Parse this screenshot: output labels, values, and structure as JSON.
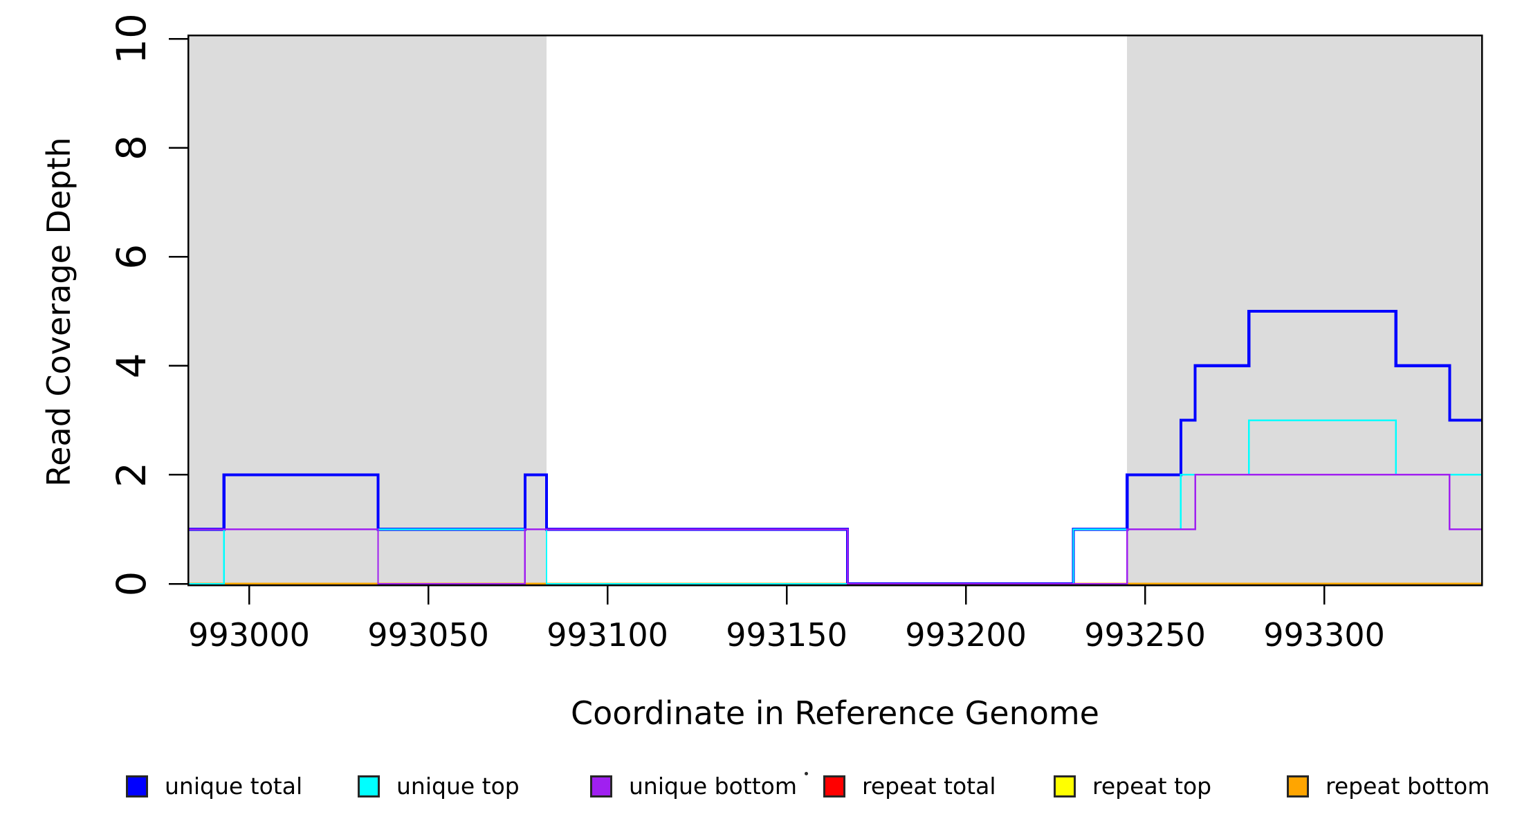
{
  "chart_data": {
    "type": "line",
    "subtype": "step-coverage-plot",
    "title": "",
    "xlabel": "Coordinate in Reference Genome",
    "ylabel": "Read Coverage Depth",
    "xlim": [
      992983,
      993344
    ],
    "ylim": [
      0,
      10
    ],
    "x_ticks": [
      993000,
      993050,
      993100,
      993150,
      993200,
      993250,
      993300
    ],
    "y_ticks": [
      0,
      2,
      4,
      6,
      8,
      10
    ],
    "grid": false,
    "background_color": "#FFFFFF",
    "box_color": "#000000",
    "shade_color": "#DCDCDC",
    "shaded_regions": [
      {
        "from": 992983,
        "to": 993083
      },
      {
        "from": 993245,
        "to": 993344
      }
    ],
    "series": [
      {
        "name": "repeat total",
        "color": "#FF0000",
        "width": 3.4,
        "points": [
          [
            992983,
            0
          ],
          [
            993344,
            0
          ]
        ]
      },
      {
        "name": "repeat top",
        "color": "#FFFF00",
        "width": 3.0,
        "points": [
          [
            992983,
            0
          ],
          [
            993344,
            0
          ]
        ]
      },
      {
        "name": "repeat bottom",
        "color": "#FFA500",
        "width": 2.8,
        "points": [
          [
            992983,
            0
          ],
          [
            993344,
            0
          ]
        ]
      },
      {
        "name": "unique total",
        "color": "#0000FF",
        "width": 4.2,
        "points": [
          [
            992983,
            1
          ],
          [
            992993,
            2
          ],
          [
            993036,
            1
          ],
          [
            993077,
            2
          ],
          [
            993083,
            1
          ],
          [
            993167,
            0
          ],
          [
            993230,
            1
          ],
          [
            993245,
            2
          ],
          [
            993260,
            3
          ],
          [
            993264,
            4
          ],
          [
            993279,
            5
          ],
          [
            993320,
            4
          ],
          [
            993335,
            3
          ],
          [
            993344,
            3
          ]
        ]
      },
      {
        "name": "unique top",
        "color": "#00FFFF",
        "width": 2.4,
        "points": [
          [
            992983,
            0
          ],
          [
            992993,
            1
          ],
          [
            993083,
            0
          ],
          [
            993230,
            1
          ],
          [
            993260,
            2
          ],
          [
            993279,
            3
          ],
          [
            993320,
            2
          ],
          [
            993344,
            2
          ]
        ]
      },
      {
        "name": "unique bottom",
        "color": "#A020F0",
        "width": 2.4,
        "points": [
          [
            992983,
            1
          ],
          [
            993036,
            0
          ],
          [
            993077,
            1
          ],
          [
            993167,
            0
          ],
          [
            993245,
            1
          ],
          [
            993264,
            2
          ],
          [
            993335,
            1
          ],
          [
            993344,
            1
          ]
        ]
      }
    ],
    "legend": [
      {
        "label": "unique total",
        "color": "#0000FF"
      },
      {
        "label": "unique top",
        "color": "#00FFFF"
      },
      {
        "label": "unique bottom",
        "color": "#A020F0"
      },
      {
        "label": "repeat total",
        "color": "#FF0000"
      },
      {
        "label": "repeat top",
        "color": "#FFFF00"
      },
      {
        "label": "repeat bottom",
        "color": "#FFA500"
      }
    ],
    "legend_position": "bottom"
  }
}
